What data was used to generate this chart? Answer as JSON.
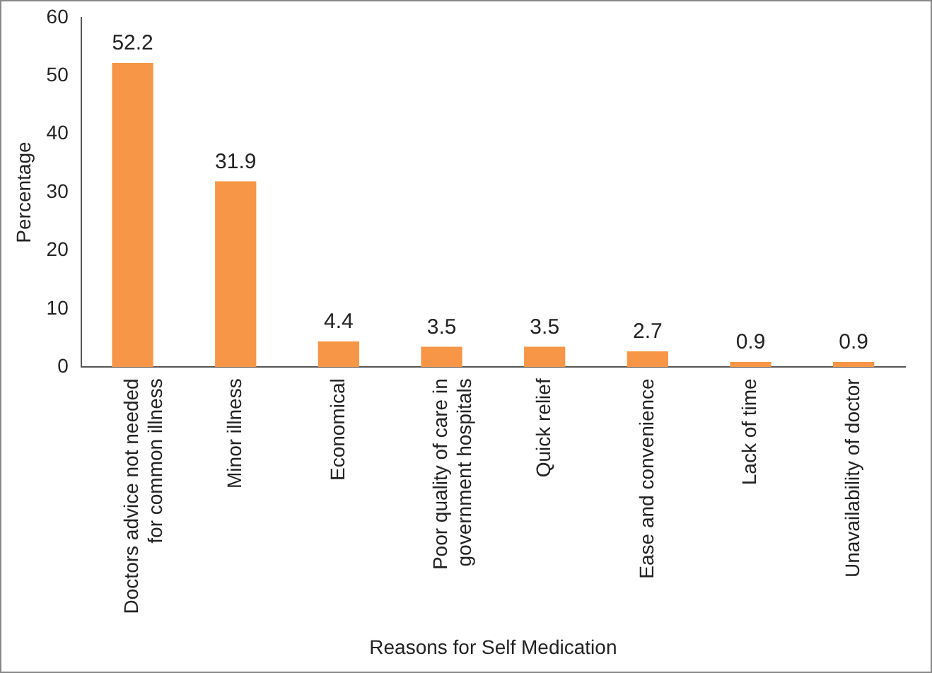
{
  "chart_data": {
    "type": "bar",
    "xlabel": "Reasons for Self Medication",
    "ylabel": "Percentage",
    "categories": [
      "Doctors advice not needed\nfor common illness",
      "Minor illness",
      "Economical",
      "Poor quality of care in\ngovernment hospitals",
      "Quick relief",
      "Ease and convenience",
      "Lack of time",
      "Unavailability of doctor"
    ],
    "values": [
      52.2,
      31.9,
      4.4,
      3.5,
      3.5,
      2.7,
      0.9,
      0.9
    ],
    "color": "#f79646",
    "ylim": [
      0,
      60
    ],
    "yticks": [
      0,
      10,
      20,
      30,
      40,
      50,
      60
    ],
    "grid": false,
    "legend": false,
    "data_labels": true
  }
}
